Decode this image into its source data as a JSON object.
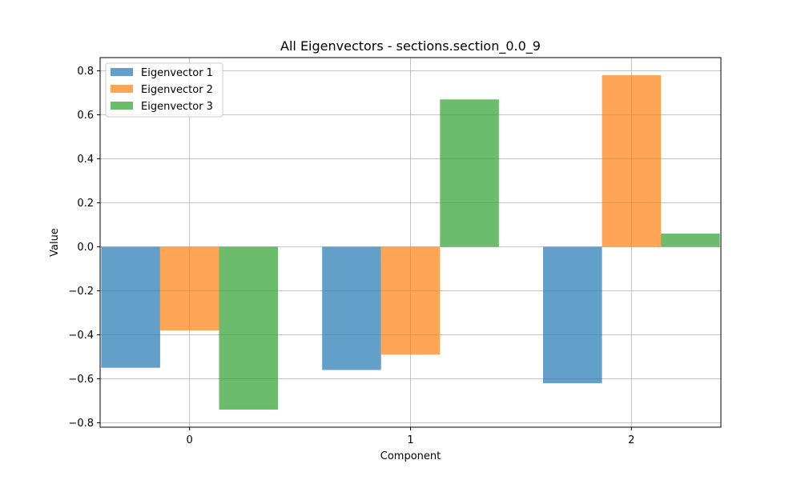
{
  "chart_data": {
    "type": "bar",
    "title": "All Eigenvectors - sections.section_0.0_9",
    "xlabel": "Component",
    "ylabel": "Value",
    "categories": [
      "0",
      "1",
      "2"
    ],
    "x": [
      0,
      1,
      2
    ],
    "series": [
      {
        "name": "Eigenvector 1",
        "values": [
          -0.55,
          -0.56,
          -0.62
        ],
        "color": "#1f77b4"
      },
      {
        "name": "Eigenvector 2",
        "values": [
          -0.38,
          -0.49,
          0.78
        ],
        "color": "#ff7f0e"
      },
      {
        "name": "Eigenvector 3",
        "values": [
          -0.74,
          0.67,
          0.06
        ],
        "color": "#2ca02c"
      }
    ],
    "xlim": [
      -0.405,
      2.405
    ],
    "ylim": [
      -0.8201,
      0.8601
    ],
    "yticks": [
      0.8,
      0.6,
      0.4,
      0.2,
      0.0,
      -0.2,
      -0.4,
      -0.6,
      -0.8
    ],
    "ytick_labels": [
      "0.8",
      "0.6",
      "0.4",
      "0.2",
      "0.0",
      "−0.2",
      "−0.4",
      "−0.6",
      "−0.8"
    ],
    "xticks": [
      0,
      1,
      2
    ],
    "xtick_labels": [
      "0",
      "1",
      "2"
    ],
    "grid": true,
    "legend_position": "top-left",
    "bar_alpha": 0.7
  }
}
